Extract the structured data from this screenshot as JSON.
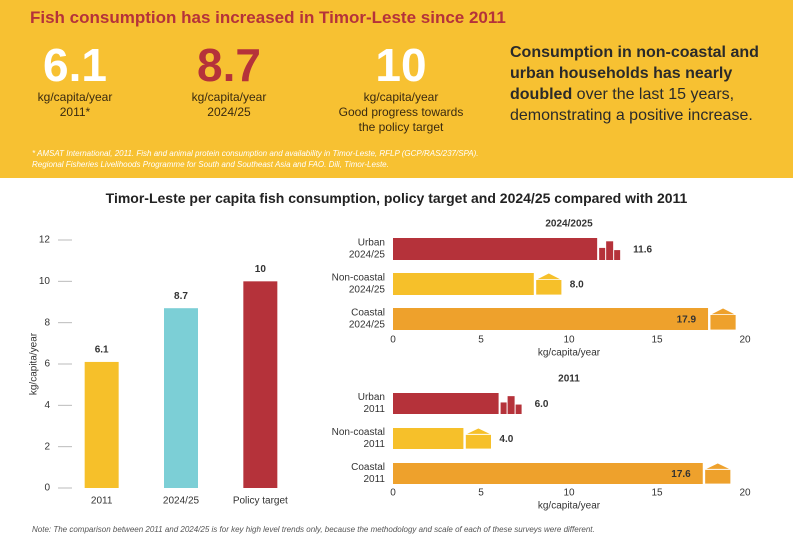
{
  "header": {
    "title": "Fish consumption has increased in Timor-Leste since 2011",
    "stats": [
      {
        "value": 6.1,
        "unit": "kg/capita/year",
        "caption": "2011*"
      },
      {
        "value": 8.7,
        "unit": "kg/capita/year",
        "caption": "2024/25"
      },
      {
        "value": 10,
        "unit": "kg/capita/year",
        "caption": "Good progress towards the policy target"
      }
    ],
    "highlight_bold": "Consumption in non-coastal and urban households has nearly doubled",
    "highlight_rest": "over the last 15 years, demonstrating a positive increase.",
    "sources": [
      "* AMSAT International, 2011. Fish and animal protein consumption and availability in Timor-Leste, RFLP (GCP/RAS/237/SPA).",
      "Regional Fisheries Livelihoods Programme for South and Southeast Asia and FAO. Dili, Timor-Leste."
    ]
  },
  "section_title": "Timor-Leste per capita fish consumption, policy target and 2024/25 compared with 2011",
  "chart_data": [
    {
      "type": "bar",
      "categories": [
        "2011",
        "2024/25",
        "Policy target"
      ],
      "values": [
        6.1,
        8.7,
        10
      ],
      "colors": [
        "#f6c02a",
        "#7ccfd6",
        "#b5323a"
      ],
      "ylabel": "kg/capita/year",
      "ylim": [
        0,
        12
      ],
      "yticks": [
        0,
        2,
        4,
        6,
        8,
        10,
        12
      ]
    },
    {
      "type": "hbar",
      "title": "2024/2025",
      "categories": [
        [
          "Urban",
          "2024/25"
        ],
        [
          "Non-coastal",
          "2024/25"
        ],
        [
          "Coastal",
          "2024/25"
        ]
      ],
      "values": [
        11.6,
        8.0,
        17.9
      ],
      "value_labels": [
        "11.6",
        "8.0",
        "17.9"
      ],
      "colors": [
        "#b5323a",
        "#f6c02a",
        "#eea12c"
      ],
      "xlabel": "kg/capita/year",
      "xlim": [
        0,
        20
      ],
      "xticks": [
        0,
        5,
        10,
        15,
        20
      ]
    },
    {
      "type": "hbar",
      "title": "2011",
      "categories": [
        [
          "Urban",
          "2011"
        ],
        [
          "Non-coastal",
          "2011"
        ],
        [
          "Coastal",
          "2011"
        ]
      ],
      "values": [
        6.0,
        4.0,
        17.6
      ],
      "value_labels": [
        "6.0",
        "4.0",
        "17.6"
      ],
      "colors": [
        "#b5323a",
        "#f6c02a",
        "#eea12c"
      ],
      "xlabel": "kg/capita/year",
      "xlim": [
        0,
        20
      ],
      "xticks": [
        0,
        5,
        10,
        15,
        20
      ]
    }
  ],
  "note": "Note: The comparison between 2011 and 2024/25 is for key high level trends only, because the methodology and scale of each of these surveys were different."
}
